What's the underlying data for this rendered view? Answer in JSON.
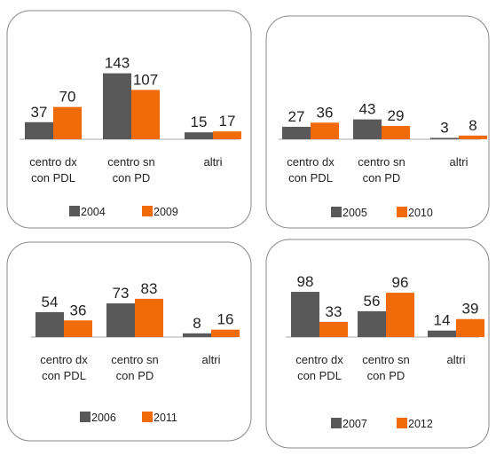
{
  "chart_data": [
    {
      "type": "bar",
      "categories": [
        [
          "centro dx",
          "con PDL"
        ],
        [
          "centro sn",
          "con PD"
        ],
        [
          "altri"
        ]
      ],
      "series": [
        {
          "name": "2004",
          "color": "#595959",
          "values": [
            37,
            143,
            15
          ]
        },
        {
          "name": "2009",
          "color": "#f26b0a",
          "values": [
            70,
            107,
            17
          ]
        }
      ]
    },
    {
      "type": "bar",
      "categories": [
        [
          "centro dx",
          "con PDL"
        ],
        [
          "centro sn",
          "con PD"
        ],
        [
          "altri"
        ]
      ],
      "series": [
        {
          "name": "2005",
          "color": "#595959",
          "values": [
            27,
            43,
            3
          ]
        },
        {
          "name": "2010",
          "color": "#f26b0a",
          "values": [
            36,
            29,
            8
          ]
        }
      ]
    },
    {
      "type": "bar",
      "categories": [
        [
          "centro dx",
          "con PDL"
        ],
        [
          "centro sn",
          "con PD"
        ],
        [
          "altri"
        ]
      ],
      "series": [
        {
          "name": "2006",
          "color": "#595959",
          "values": [
            54,
            73,
            8
          ]
        },
        {
          "name": "2011",
          "color": "#f26b0a",
          "values": [
            36,
            83,
            16
          ]
        }
      ]
    },
    {
      "type": "bar",
      "categories": [
        [
          "centro dx",
          "con PDL"
        ],
        [
          "centro sn",
          "con PD"
        ],
        [
          "altri"
        ]
      ],
      "series": [
        {
          "name": "2007",
          "color": "#595959",
          "values": [
            98,
            56,
            14
          ]
        },
        {
          "name": "2012",
          "color": "#f26b0a",
          "values": [
            33,
            96,
            39
          ]
        }
      ]
    }
  ]
}
